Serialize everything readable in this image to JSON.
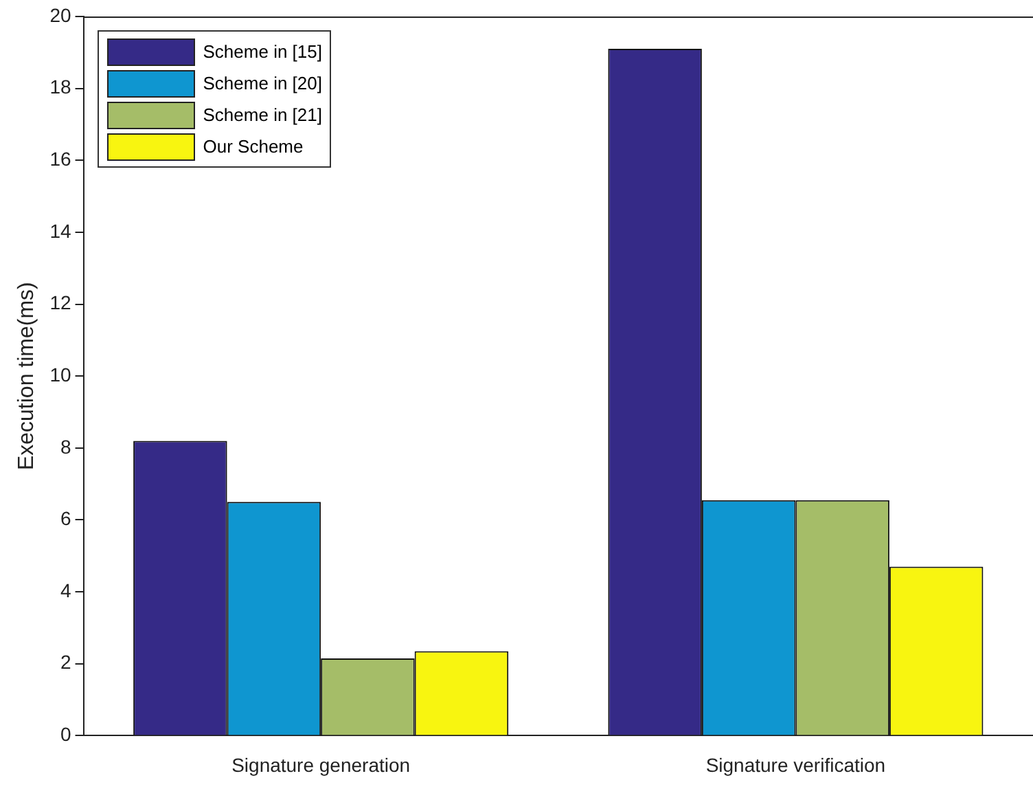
{
  "chart_data": {
    "type": "bar",
    "ylabel": "Execution time(ms)",
    "categories": [
      "Signature generation",
      "Signature verification"
    ],
    "series": [
      {
        "name": "Scheme in [15]",
        "color": "#352a87",
        "values": [
          8.2,
          19.1
        ]
      },
      {
        "name": "Scheme in [20]",
        "color": "#0f96d0",
        "values": [
          6.5,
          6.55
        ]
      },
      {
        "name": "Scheme in [21]",
        "color": "#a5bd68",
        "values": [
          2.15,
          6.55
        ]
      },
      {
        "name": "Our Scheme",
        "color": "#f8f510",
        "values": [
          2.35,
          4.7
        ]
      }
    ],
    "ylim": [
      0,
      20
    ],
    "yticks": [
      0,
      2,
      4,
      6,
      8,
      10,
      12,
      14,
      16,
      18,
      20
    ],
    "grid": false,
    "legend": "top left"
  }
}
